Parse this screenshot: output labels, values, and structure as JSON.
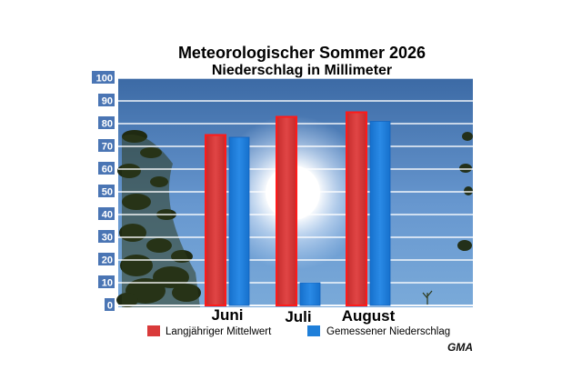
{
  "chart_data": {
    "type": "bar",
    "title": "Meteorologischer Sommer 2026",
    "subtitle": "Niederschlag in Millimeter",
    "categories": [
      "Juni",
      "Juli",
      "August"
    ],
    "series": [
      {
        "name": "Langjähriger Mittelwert",
        "values": [
          75,
          83,
          85
        ],
        "color": "#d93a3a"
      },
      {
        "name": "Gemessener Niederschlag",
        "values": [
          74,
          10,
          81
        ],
        "color": "#1f7fd9"
      }
    ],
    "ylim": [
      0,
      100
    ],
    "yticks": [
      "0",
      "10",
      "20",
      "30",
      "40",
      "50",
      "60",
      "70",
      "80",
      "90",
      "100"
    ],
    "grid": true,
    "legend": "bottom",
    "background": "sky-sun-photo"
  },
  "logo": "GMA",
  "colors": {
    "sky_top": "#3f6ea8",
    "sky_bottom": "#6f9fd4",
    "axis_badge": "#4a75b4",
    "red_outline": "#ff1a1a"
  }
}
